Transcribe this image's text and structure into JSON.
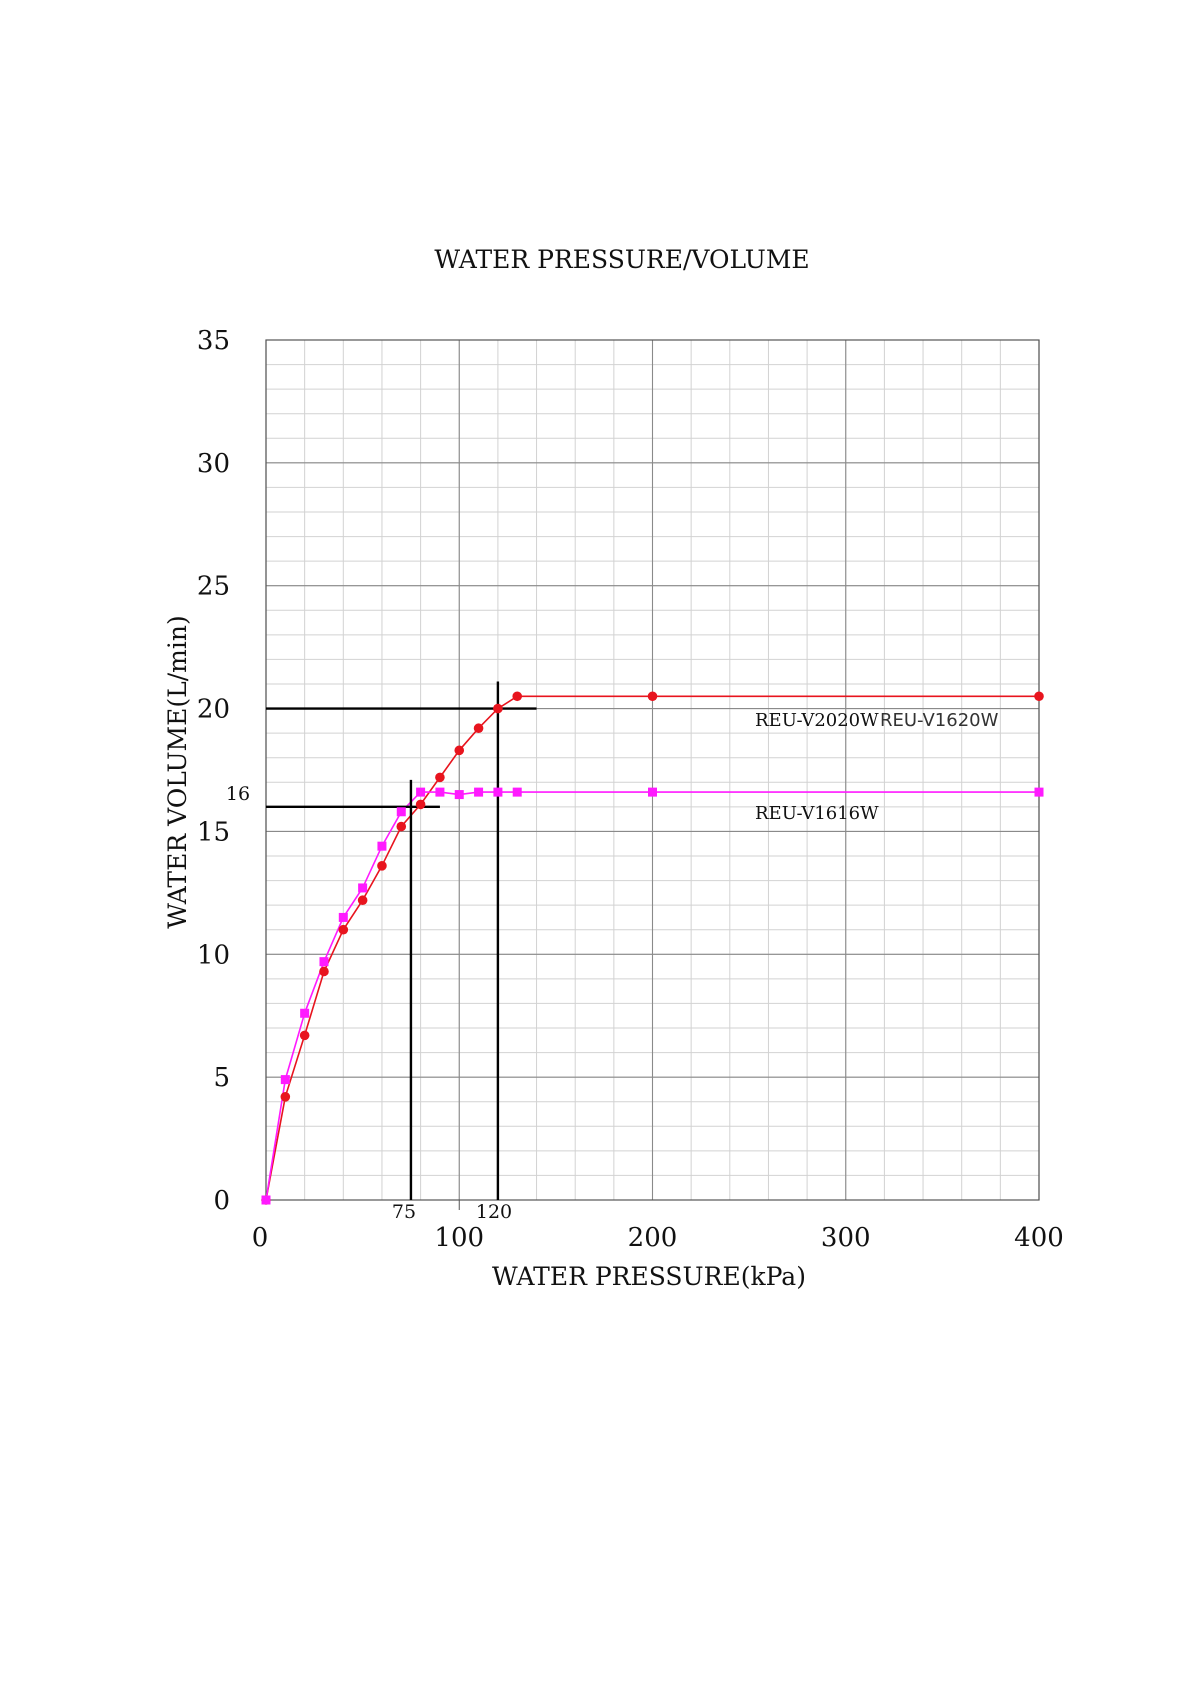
{
  "chart_data": {
    "type": "line",
    "title": "WATER PRESSURE/VOLUME",
    "xlabel": "WATER PRESSURE(kPa)",
    "ylabel": "WATER VOLUME(L/min)",
    "xlim": [
      0,
      400
    ],
    "ylim": [
      0,
      35
    ],
    "x_ticks": [
      0,
      100,
      200,
      300,
      400
    ],
    "y_ticks": [
      0,
      5,
      10,
      15,
      20,
      25,
      30,
      35
    ],
    "grid": true,
    "series": [
      {
        "labels": [
          "REU-V2020W",
          "REU-V1620W"
        ],
        "color": "#e8141e",
        "marker": "circle",
        "points": [
          [
            0,
            0
          ],
          [
            10,
            4.2
          ],
          [
            20,
            6.7
          ],
          [
            30,
            9.3
          ],
          [
            40,
            11.0
          ],
          [
            50,
            12.2
          ],
          [
            60,
            13.6
          ],
          [
            70,
            15.2
          ],
          [
            80,
            16.1
          ],
          [
            90,
            17.2
          ],
          [
            100,
            18.3
          ],
          [
            110,
            19.2
          ],
          [
            120,
            20.0
          ],
          [
            130,
            20.5
          ],
          [
            200,
            20.5
          ],
          [
            400,
            20.5
          ]
        ]
      },
      {
        "labels": [
          "REU-V1616W"
        ],
        "color": "#ff1aff",
        "marker": "square",
        "points": [
          [
            0,
            0
          ],
          [
            10,
            4.9
          ],
          [
            20,
            7.6
          ],
          [
            30,
            9.7
          ],
          [
            40,
            11.5
          ],
          [
            50,
            12.7
          ],
          [
            60,
            14.4
          ],
          [
            70,
            15.8
          ],
          [
            80,
            16.6
          ],
          [
            90,
            16.6
          ],
          [
            100,
            16.5
          ],
          [
            110,
            16.6
          ],
          [
            120,
            16.6
          ],
          [
            130,
            16.6
          ],
          [
            200,
            16.6
          ],
          [
            400,
            16.6
          ]
        ]
      }
    ],
    "annotations": [
      {
        "label": "75",
        "x": 75,
        "y": 16,
        "y_label": "16"
      },
      {
        "label": "120",
        "x": 120,
        "y": 20
      }
    ]
  }
}
